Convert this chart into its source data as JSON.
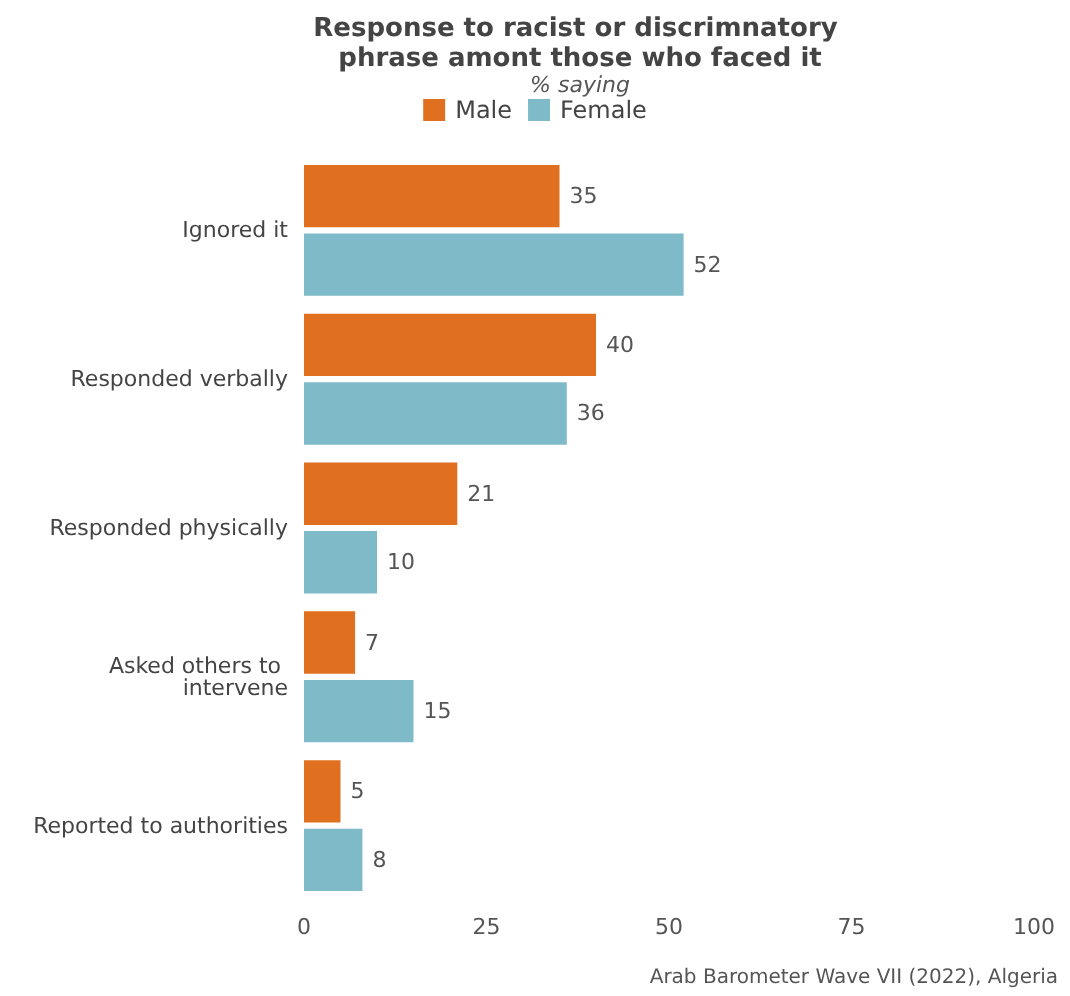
{
  "chart_data": {
    "type": "bar",
    "orientation": "horizontal",
    "title": "Response to racist or discrimnatory phrase amont those who faced it",
    "subtitle": "% saying",
    "categories": [
      "Ignored it",
      "Responded verbally",
      "Responded physically",
      "Asked others to intervene",
      "Reported to authorities"
    ],
    "series": [
      {
        "name": "Male",
        "color": "#e07020",
        "values": [
          35,
          40,
          21,
          7,
          5
        ]
      },
      {
        "name": "Female",
        "color": "#7fbac8",
        "values": [
          52,
          36,
          10,
          15,
          8
        ]
      }
    ],
    "xlim": [
      0,
      100
    ],
    "xticks": [
      0,
      25,
      50,
      75,
      100
    ],
    "grid": false,
    "legend": "top",
    "data_labels": true,
    "annotations": [
      "Arab Barometer Wave VII (2022), Algeria"
    ]
  }
}
